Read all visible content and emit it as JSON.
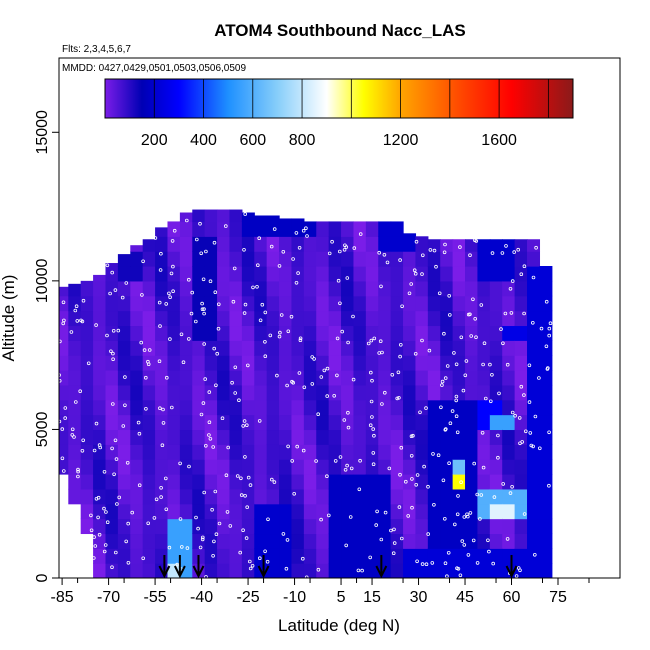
{
  "chart_data": {
    "type": "heatmap",
    "title": "ATOM4 Southbound Nacc_LAS",
    "flights_note": "Flts: 2,3,4,5,6,7",
    "dates_note": "MMDD: 0427,0429,0501,0503,0506,0509",
    "xlabel": "Latitude (deg N)",
    "ylabel": "Altitude (m)",
    "xlim": [
      -86,
      95
    ],
    "ylim": [
      0,
      17500
    ],
    "x_ticks": [
      -85,
      -70,
      -55,
      -40,
      -25,
      -10,
      5,
      15,
      30,
      45,
      60,
      75
    ],
    "x_tick_labels": [
      "-85",
      "-70",
      "-55",
      "-40",
      "-25",
      "-10",
      "5",
      "15",
      "30",
      "45",
      "60",
      "75"
    ],
    "y_ticks": [
      0,
      5000,
      10000,
      15000
    ],
    "y_tick_labels": [
      "0",
      "5000",
      "10000",
      "15000"
    ],
    "colorbar": {
      "range": [
        0,
        1900
      ],
      "ticks": [
        200,
        400,
        600,
        800,
        1200,
        1600
      ],
      "tick_labels": [
        "200",
        "400",
        "600",
        "800",
        "1200",
        "1600"
      ],
      "stops": [
        {
          "v": 0,
          "c": "#7b1de8"
        },
        {
          "v": 150,
          "c": "#0000b4"
        },
        {
          "v": 300,
          "c": "#0000ff"
        },
        {
          "v": 500,
          "c": "#1e90ff"
        },
        {
          "v": 700,
          "c": "#87cefa"
        },
        {
          "v": 900,
          "c": "#ffffff"
        },
        {
          "v": 1050,
          "c": "#ffff00"
        },
        {
          "v": 1200,
          "c": "#ffa500"
        },
        {
          "v": 1450,
          "c": "#ff4500"
        },
        {
          "v": 1650,
          "c": "#ff0000"
        },
        {
          "v": 1900,
          "c": "#8b1a1a"
        }
      ]
    },
    "profile_marker_latitudes": [
      -52,
      -47,
      -41,
      -20,
      18,
      60
    ],
    "field": {
      "lat_edges": [
        -87,
        -83,
        -79,
        -75,
        -71,
        -67,
        -63,
        -59,
        -55,
        -51,
        -47,
        -43,
        -39,
        -35,
        -31,
        -27,
        -23,
        -19,
        -15,
        -11,
        -7,
        -3,
        1,
        5,
        9,
        13,
        17,
        21,
        25,
        29,
        33,
        37,
        41,
        45,
        49,
        53,
        57,
        61,
        65,
        69,
        73
      ],
      "column_top_alt": [
        9800,
        9900,
        10000,
        10200,
        10600,
        10900,
        11200,
        11400,
        11800,
        12000,
        12300,
        12400,
        12400,
        12400,
        12400,
        12300,
        12200,
        12200,
        12100,
        12100,
        12000,
        12000,
        12000,
        12000,
        12000,
        12000,
        12000,
        12000,
        11600,
        11500,
        11400,
        11400,
        11400,
        11400,
        11400,
        11400,
        11400,
        11400,
        11400,
        10500
      ],
      "column_bottom_alt": [
        3500,
        2500,
        1500,
        0,
        0,
        0,
        0,
        0,
        0,
        0,
        0,
        0,
        0,
        0,
        0,
        0,
        0,
        0,
        0,
        0,
        0,
        0,
        0,
        0,
        0,
        0,
        0,
        0,
        0,
        0,
        0,
        0,
        0,
        0,
        0,
        0,
        0,
        0,
        0,
        0
      ],
      "background_value": 60,
      "features": [
        {
          "lat": [
            -51,
            -45
          ],
          "alt": [
            0,
            1800
          ],
          "value": 550
        },
        {
          "lat": [
            -49,
            -47
          ],
          "alt": [
            0,
            700
          ],
          "value": 800
        },
        {
          "lat": [
            -27,
            -3
          ],
          "alt": [
            11400,
            12400
          ],
          "value": 180
        },
        {
          "lat": [
            17,
            29
          ],
          "alt": [
            11000,
            12000
          ],
          "value": 200
        },
        {
          "lat": [
            49,
            61
          ],
          "alt": [
            10000,
            11400
          ],
          "value": 200
        },
        {
          "lat": [
            57,
            65
          ],
          "alt": [
            8000,
            8500
          ],
          "value": 250
        },
        {
          "lat": [
            49,
            57
          ],
          "alt": [
            5000,
            6000
          ],
          "value": 300
        },
        {
          "lat": [
            53,
            61
          ],
          "alt": [
            4800,
            5600
          ],
          "value": 550
        },
        {
          "lat": [
            41,
            45
          ],
          "alt": [
            3000,
            3500
          ],
          "value": 850
        },
        {
          "lat": [
            43,
            44
          ],
          "alt": [
            3100,
            3300
          ],
          "value": 1050
        },
        {
          "lat": [
            41,
            45
          ],
          "alt": [
            3500,
            4000
          ],
          "value": 650
        },
        {
          "lat": [
            49,
            65
          ],
          "alt": [
            1800,
            3000
          ],
          "value": 600
        },
        {
          "lat": [
            53,
            61
          ],
          "alt": [
            1900,
            2600
          ],
          "value": 850
        },
        {
          "lat": [
            25,
            65
          ],
          "alt": [
            0,
            1000
          ],
          "value": 220
        },
        {
          "lat": [
            -23,
            -11
          ],
          "alt": [
            0,
            2500
          ],
          "value": 200
        },
        {
          "lat": [
            1,
            21
          ],
          "alt": [
            0,
            3500
          ],
          "value": 180
        },
        {
          "lat": [
            33,
            49
          ],
          "alt": [
            0,
            6000
          ],
          "value": 180
        },
        {
          "lat": [
            65,
            73
          ],
          "alt": [
            0,
            10500
          ],
          "value": 220
        },
        {
          "lat": [
            -43,
            -35
          ],
          "alt": [
            8000,
            11400
          ],
          "value": 140
        },
        {
          "lat": [
            -67,
            -59
          ],
          "alt": [
            10000,
            11000
          ],
          "value": 130
        }
      ]
    }
  }
}
